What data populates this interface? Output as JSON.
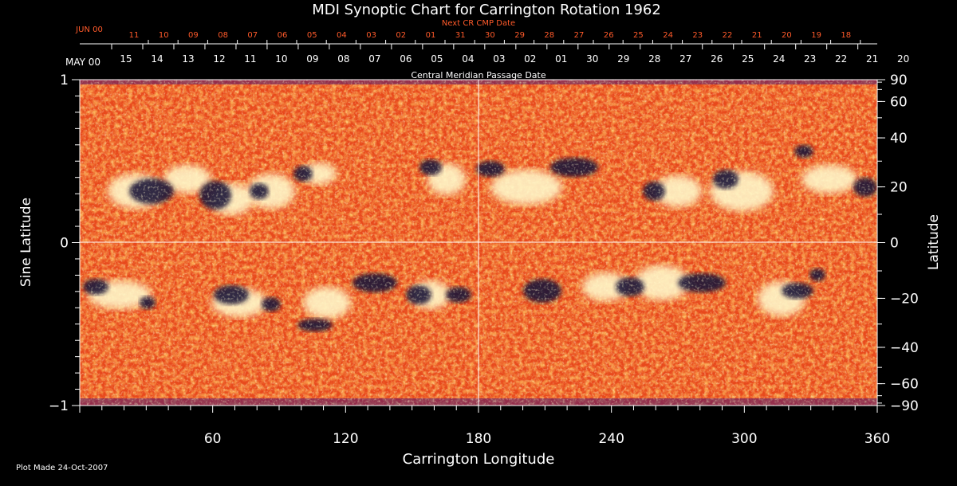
{
  "chart_data": {
    "type": "heatmap",
    "title": "MDI Synoptic Chart for Carrington Rotation 1962",
    "xlabel": "Carrington Longitude",
    "ylabel_left": "Sine Latitude",
    "ylabel_right": "Latitude",
    "xlim": [
      0,
      360
    ],
    "ylim": [
      -1,
      1
    ],
    "x_ticks": [
      60,
      120,
      180,
      240,
      300,
      360
    ],
    "y_ticks_left": [
      {
        "value": 1,
        "label": "1"
      },
      {
        "value": 0,
        "label": "0"
      },
      {
        "value": -1,
        "label": "−1"
      }
    ],
    "y_ticks_right": [
      90,
      60,
      40,
      20,
      0,
      -20,
      -40,
      -60,
      -90
    ],
    "grid": "center crosshair at 180° longitude and 0 latitude",
    "top_axis": {
      "label": "Central Meridian Passage Date",
      "start_label": "MAY 00",
      "dates": [
        "15",
        "14",
        "13",
        "12",
        "11",
        "10",
        "09",
        "08",
        "07",
        "06",
        "05",
        "04",
        "03",
        "02",
        "01",
        "30",
        "29",
        "28",
        "27",
        "26",
        "25",
        "24",
        "23",
        "22",
        "21",
        "20"
      ]
    },
    "next_cr_axis": {
      "label": "Next CR CMP Date",
      "start_label": "JUN 00",
      "dates": [
        "11",
        "10",
        "09",
        "08",
        "07",
        "06",
        "05",
        "04",
        "03",
        "02",
        "01",
        "31",
        "30",
        "29",
        "28",
        "27",
        "26",
        "25",
        "24",
        "23",
        "22",
        "21",
        "20",
        "19",
        "18"
      ]
    },
    "footer": "Plot Made 24-Oct-2007",
    "colors": {
      "background": "#000000",
      "next_cr": "#ff5a2a",
      "photosphere": "#e8491c",
      "positive": "#fff6c8",
      "negative": "#1a1238"
    }
  }
}
